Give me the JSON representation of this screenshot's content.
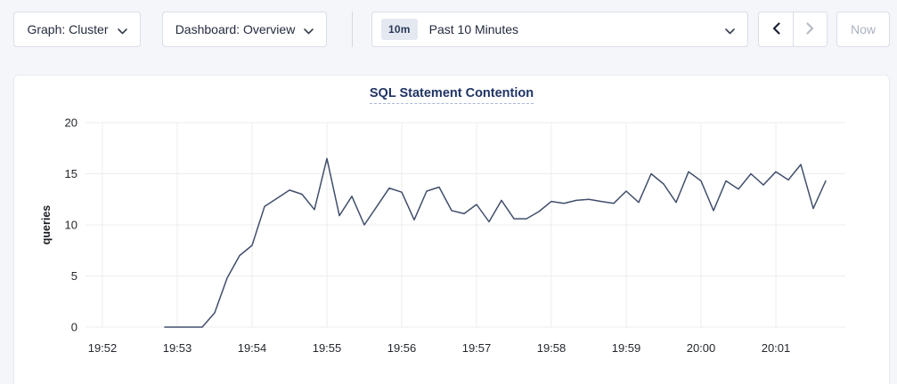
{
  "toolbar": {
    "graph_dropdown": {
      "label": "Graph: Cluster"
    },
    "dashboard_dropdown": {
      "label": "Dashboard: Overview"
    },
    "time_range": {
      "badge": "10m",
      "label": "Past 10 Minutes"
    },
    "now_button": "Now"
  },
  "chart": {
    "title": "SQL Statement Contention",
    "ylabel": "queries"
  },
  "chart_data": {
    "type": "line",
    "title": "SQL Statement Contention",
    "xlabel": "",
    "ylabel": "queries",
    "ylim": [
      0,
      20
    ],
    "y_ticks": [
      0,
      5,
      10,
      15,
      20
    ],
    "x_tick_labels": [
      "19:52",
      "19:53",
      "19:54",
      "19:55",
      "19:56",
      "19:57",
      "19:58",
      "19:59",
      "20:00",
      "20:01"
    ],
    "grid": true,
    "legend_position": "none",
    "line_color": "#414e6b",
    "series": [
      {
        "name": "queries",
        "start_time": "19:52:50",
        "end_time": "20:01:40",
        "interval_seconds": 10,
        "values": [
          0,
          0,
          0,
          0,
          1.4,
          4.8,
          7,
          8,
          11.8,
          12.6,
          13.4,
          13,
          11.5,
          16.5,
          10.9,
          12.8,
          10,
          11.8,
          13.6,
          13.2,
          10.5,
          13.3,
          13.7,
          11.4,
          11.1,
          12,
          10.3,
          12.4,
          10.6,
          10.6,
          11.3,
          12.3,
          12.1,
          12.4,
          12.5,
          12.3,
          12.1,
          13.3,
          12.2,
          15,
          14,
          12.2,
          15.2,
          14.3,
          11.4,
          14.3,
          13.5,
          15,
          13.9,
          15.2,
          14.4,
          15.9,
          11.6,
          14.3
        ]
      }
    ]
  },
  "colors": {
    "page_bg": "#f5f6fa",
    "card_bg": "#ffffff",
    "border": "#d9dde6",
    "title_navy": "#1f3364",
    "line": "#414e6b",
    "gridline": "#ececee",
    "disabled_text": "#aab2c0"
  }
}
